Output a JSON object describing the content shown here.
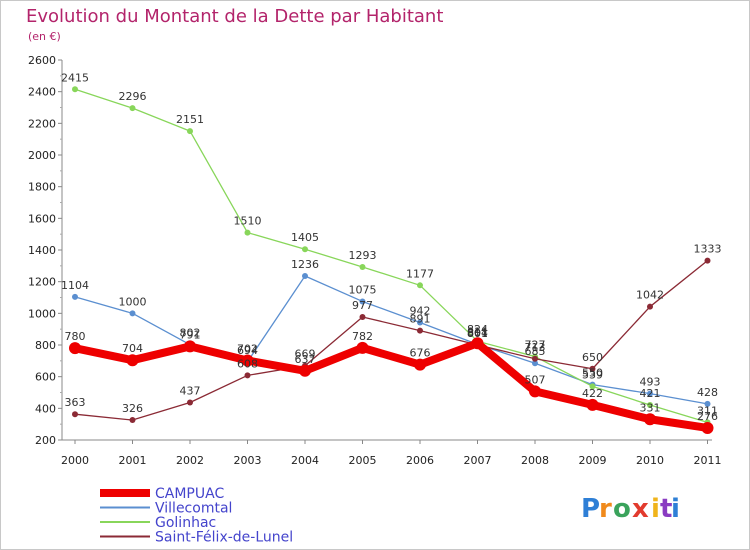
{
  "chart_data": {
    "type": "line",
    "title": "Evolution du Montant de la Dette par Habitant",
    "subtitle": "(en €)",
    "xlabel": "",
    "ylabel": "",
    "x": [
      "2000",
      "2001",
      "2002",
      "2003",
      "2004",
      "2005",
      "2006",
      "2007",
      "2008",
      "2009",
      "2010",
      "2011"
    ],
    "ylim": [
      200,
      2600
    ],
    "yticks": [
      200,
      400,
      600,
      800,
      1000,
      1200,
      1400,
      1600,
      1800,
      2000,
      2200,
      2400,
      2600
    ],
    "grid": false,
    "legend_position": "bottom-left",
    "series": [
      {
        "name": "Villecomtal",
        "color": "#5b8fd0",
        "values": [
          1104,
          1000,
          802,
          694,
          1236,
          1075,
          942,
          804,
          685,
          550,
          493,
          428
        ],
        "value_labels": [
          "1104",
          "1000",
          "802",
          "694",
          "1236",
          "1075",
          "942",
          "804",
          "685",
          "550",
          "493",
          "428"
        ]
      },
      {
        "name": "Golinhac",
        "color": "#88d65a",
        "values": [
          2415,
          2296,
          2151,
          1510,
          1405,
          1293,
          1177,
          824,
          727,
          539,
          421,
          311
        ],
        "value_labels": [
          "2415",
          "2296",
          "2151",
          "1510",
          "1405",
          "1293",
          "1177",
          "824",
          "727",
          "539",
          "421",
          "311"
        ]
      },
      {
        "name": "Saint-Félix-de-Lunel",
        "color": "#8b2a35",
        "values": [
          363,
          326,
          437,
          608,
          669,
          977,
          891,
          801,
          713,
          650,
          1042,
          1333
        ],
        "value_labels": [
          "363",
          "326",
          "437",
          "608",
          "669",
          "977",
          "891",
          "801",
          "713",
          "650",
          "1042",
          "1333"
        ]
      },
      {
        "name": "CAMPUAC",
        "color": "#ee0000",
        "values": [
          780,
          704,
          791,
          702,
          637,
          782,
          676,
          811,
          507,
          422,
          331,
          276
        ],
        "value_labels": [
          "780",
          "704",
          "791",
          "702",
          "637",
          "782",
          "676",
          "811",
          "507",
          "422",
          "331",
          "276"
        ]
      }
    ]
  },
  "legend": {
    "items": [
      "CAMPUAC",
      "Villecomtal",
      "Golinhac",
      "Saint-Félix-de-Lunel"
    ]
  },
  "logo": {
    "text": "Proxiti",
    "letter_colors": [
      "#2e7fd6",
      "#f08a1c",
      "#3aa35c",
      "#e23b2e",
      "#f0b41c",
      "#8a3cc2",
      "#2e7fd6"
    ]
  }
}
